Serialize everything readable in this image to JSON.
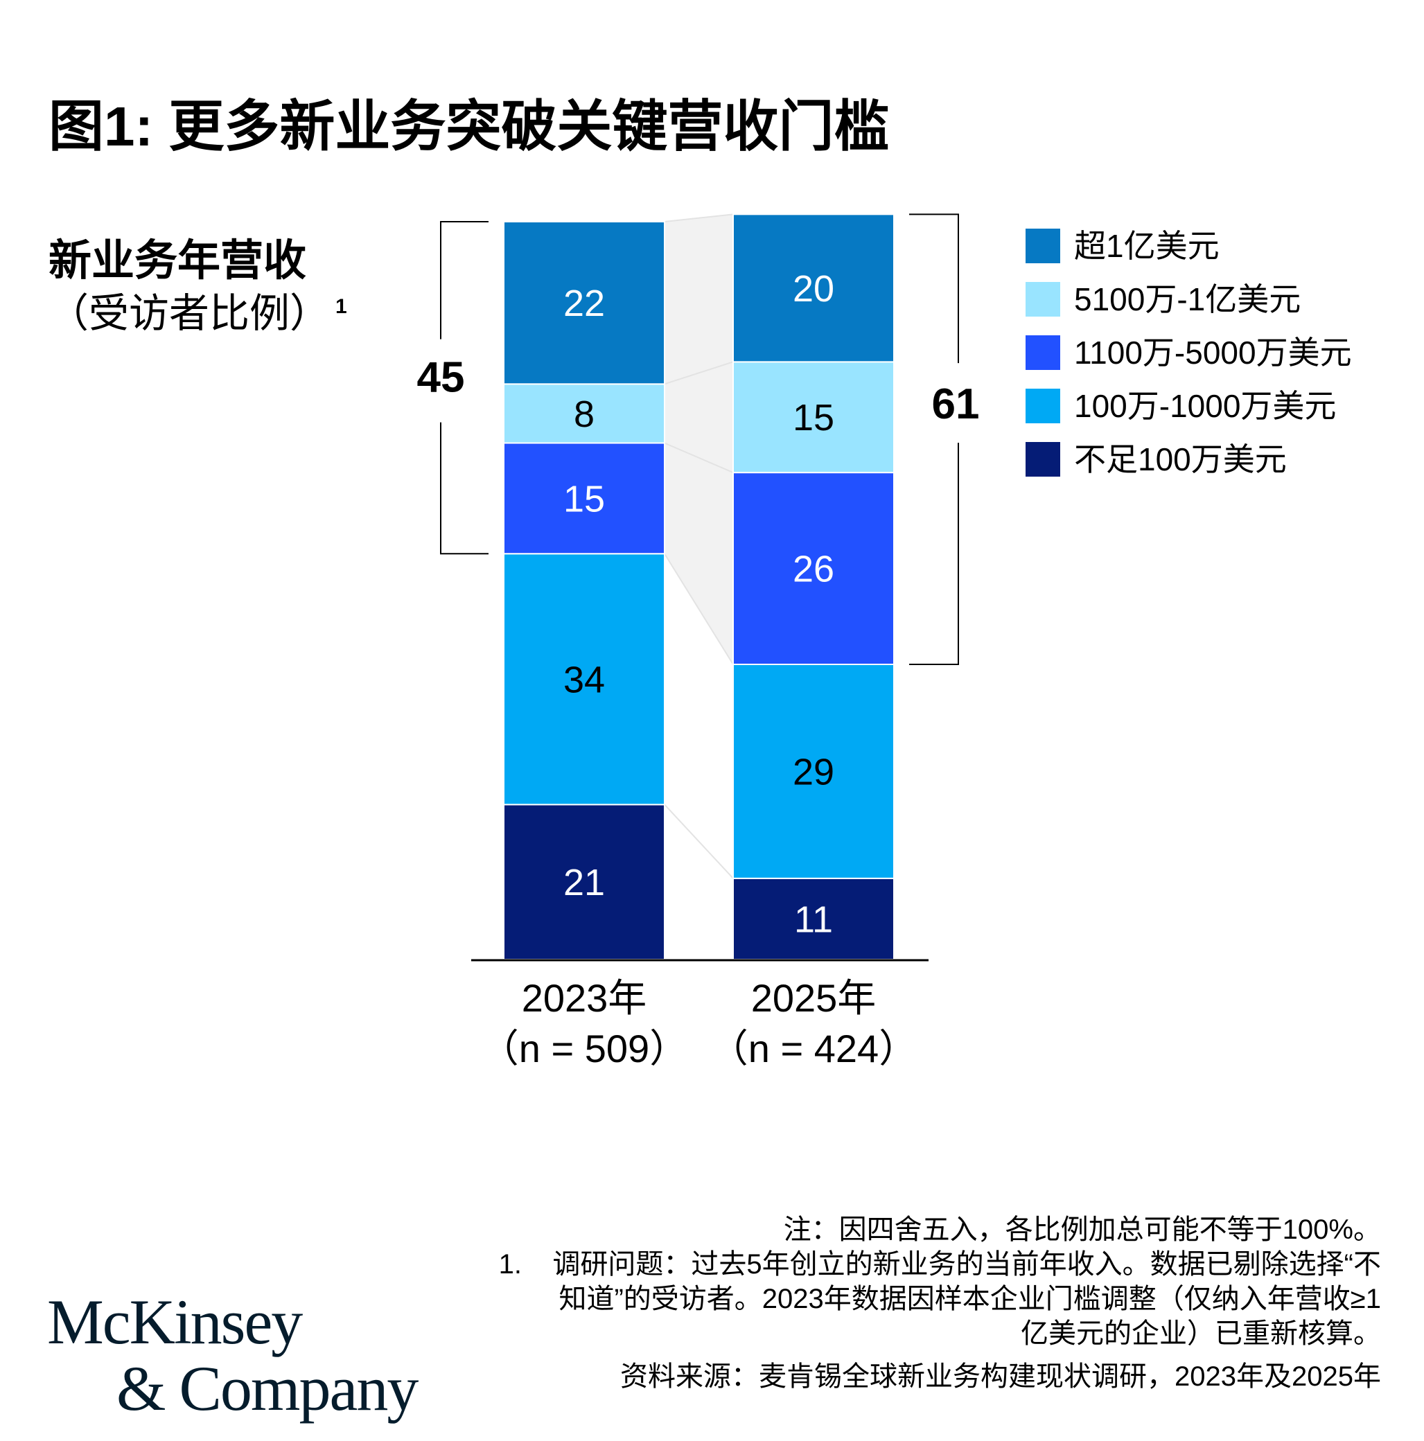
{
  "title": "图1: 更多新业务突破关键营收门槛",
  "ylabel": {
    "main": "新业务年营收",
    "sub": "（受访者比例）",
    "footnote_mark": "1"
  },
  "chart_data": {
    "type": "bar",
    "stacked": true,
    "categories": [
      {
        "year": "2023年",
        "n": "（n = 509）"
      },
      {
        "year": "2025年",
        "n": "（n = 424）"
      }
    ],
    "series": [
      {
        "name": "不足100万美元",
        "color": "#051c76",
        "text_color": "#ffffff",
        "values": [
          21,
          11
        ]
      },
      {
        "name": "100万-1000万美元",
        "color": "#00a9f4",
        "text_color": "#000000",
        "values": [
          34,
          29
        ]
      },
      {
        "name": "1100万-5000万美元",
        "color": "#2251ff",
        "text_color": "#ffffff",
        "values": [
          15,
          26
        ]
      },
      {
        "name": "5100万-1亿美元",
        "color": "#99e4ff",
        "text_color": "#000000",
        "values": [
          8,
          15
        ]
      },
      {
        "name": "超1亿美元",
        "color": "#0679c3",
        "text_color": "#ffffff",
        "values": [
          22,
          20
        ]
      }
    ],
    "legend_order": [
      "超1亿美元",
      "5100万-1亿美元",
      "1100万-5000万美元",
      "100万-1000万美元",
      "不足100万美元"
    ],
    "legend_position": "top-right",
    "bracket_totals": [
      "45",
      "61"
    ],
    "ylim": [
      0,
      100
    ],
    "grid": false
  },
  "notes": {
    "note": "注：因四舍五入，各比例加总可能不等于100%。",
    "footnote_num": "1.",
    "footnote_text": "调研问题：过去5年创立的新业务的当前年收入。数据已剔除选择“不知道”的受访者。2023年数据因样本企业门槛调整（仅纳入年营收≥1亿美元的企业）已重新核算。",
    "source": "资料来源：麦肯锡全球新业务构建现状调研，2023年及2025年"
  },
  "logo": {
    "line1": "McKinsey",
    "line2": "& Company"
  }
}
